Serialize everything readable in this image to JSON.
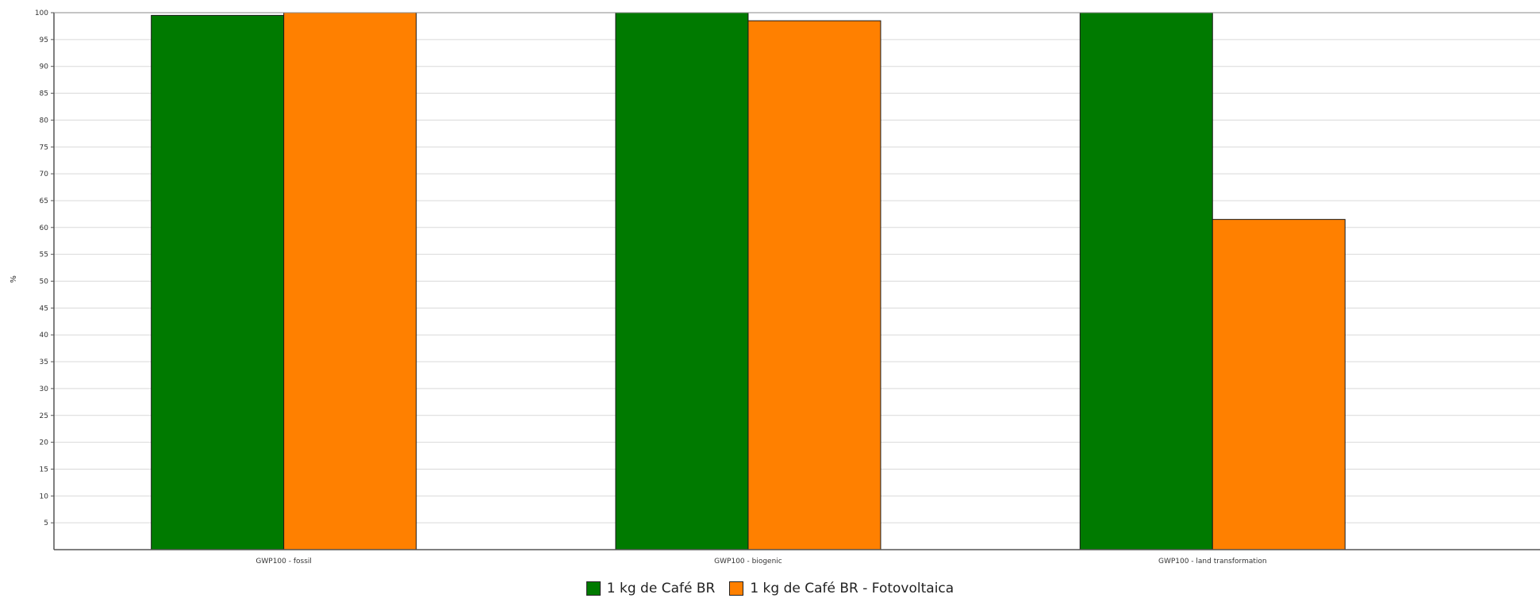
{
  "chart_data": {
    "type": "bar",
    "categories": [
      "GWP100 - fossil",
      "GWP100 - biogenic",
      "GWP100 - land transformation"
    ],
    "series": [
      {
        "name": "1 kg de Café BR",
        "values": [
          99.5,
          100,
          100
        ],
        "color": "#007a00"
      },
      {
        "name": "1 kg de Café BR - Fotovoltaica",
        "values": [
          100,
          98.5,
          61.5
        ],
        "color": "#ff8000"
      }
    ],
    "ylabel": "%",
    "ylim": [
      0,
      100
    ],
    "yticks": [
      5,
      10,
      15,
      20,
      25,
      30,
      35,
      40,
      45,
      50,
      55,
      60,
      65,
      70,
      75,
      80,
      85,
      90,
      95,
      100
    ],
    "grid": true,
    "legend_position": "bottom-center"
  }
}
